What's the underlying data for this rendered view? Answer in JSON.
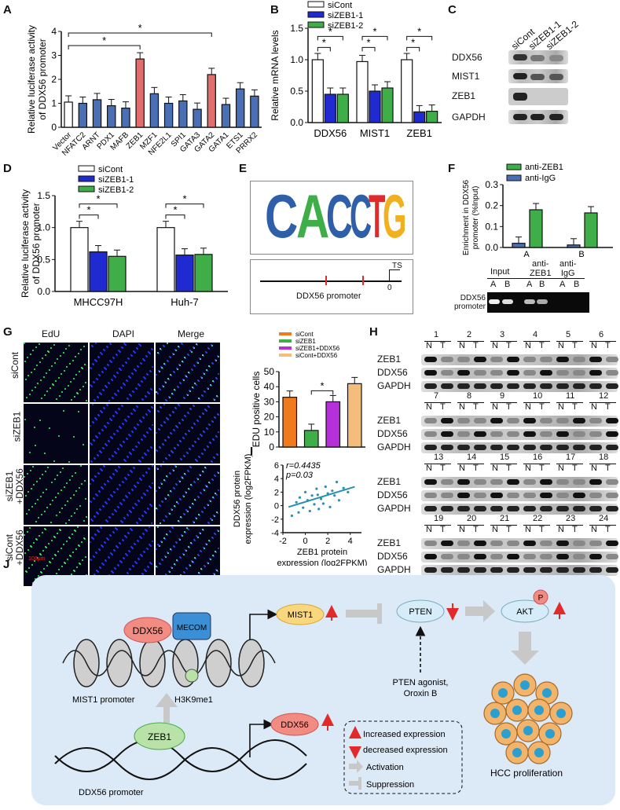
{
  "chart_data": [
    {
      "type": "bar",
      "panel": "A",
      "ylabel_line1": "Relative luciferase activity",
      "ylabel_line2": "of DDX56 promoter",
      "categories": [
        "Vector",
        "NFATC2",
        "ARNT",
        "PDX1",
        "MAFB",
        "ZEB1",
        "MZF1",
        "NFE2L1",
        "SPI1",
        "GATA3",
        "GATA2",
        "GATA1",
        "ETS1",
        "PRRX2"
      ],
      "values": [
        1.05,
        1.0,
        1.15,
        0.9,
        0.8,
        2.85,
        1.4,
        1.0,
        1.1,
        0.75,
        2.2,
        0.95,
        1.6,
        1.3
      ],
      "colors": [
        "#ffffff",
        "#4a6fb5",
        "#4a6fb5",
        "#4a6fb5",
        "#4a6fb5",
        "#e26d6d",
        "#4a6fb5",
        "#4a6fb5",
        "#4a6fb5",
        "#4a6fb5",
        "#e26d6d",
        "#4a6fb5",
        "#4a6fb5",
        "#4a6fb5"
      ],
      "ylim": [
        0,
        4
      ],
      "yticks": [
        "0",
        "1",
        "2",
        "3",
        "4"
      ],
      "sig": "*"
    },
    {
      "type": "bar",
      "panel": "B",
      "ylabel": "Relative mRNA levels",
      "categories": [
        "DDX56",
        "MIST1",
        "ZEB1"
      ],
      "series": [
        {
          "name": "siCont",
          "values": [
            1.0,
            0.97,
            1.0
          ],
          "color": "#ffffff"
        },
        {
          "name": "siZEB1-1",
          "values": [
            0.45,
            0.5,
            0.17
          ],
          "color": "#1f2bd0"
        },
        {
          "name": "siZEB1-2",
          "values": [
            0.45,
            0.55,
            0.18
          ],
          "color": "#3fae49"
        }
      ],
      "ylim": [
        0,
        1.5
      ],
      "yticks": [
        "0.0",
        "0.5",
        "1.0",
        "1.5"
      ],
      "sig": "*"
    },
    {
      "type": "bar",
      "panel": "D",
      "ylabel_line1": "Relative luciferase activity",
      "ylabel_line2": "of DDX56 promoter",
      "categories": [
        "MHCC97H",
        "Huh-7"
      ],
      "series": [
        {
          "name": "siCont",
          "values": [
            1.0,
            1.0
          ],
          "color": "#ffffff"
        },
        {
          "name": "siZEB1-1",
          "values": [
            0.62,
            0.57
          ],
          "color": "#1f2bd0"
        },
        {
          "name": "siZEB1-2",
          "values": [
            0.55,
            0.58
          ],
          "color": "#3fae49"
        }
      ],
      "ylim": [
        0,
        1.5
      ],
      "yticks": [
        "0.0",
        "0.5",
        "1.0",
        "1.5"
      ],
      "sig": "*"
    },
    {
      "type": "bar",
      "panel": "F",
      "ylabel_line1": "Enrichment in DDX56",
      "ylabel_line2": "promoter  (%Input)",
      "categories": [
        "A",
        "B"
      ],
      "series": [
        {
          "name": "anti-ZEB1",
          "values": [
            0.18,
            0.165
          ],
          "color": "#3fae49"
        },
        {
          "name": "anti-IgG",
          "values": [
            0.02,
            0.012
          ],
          "color": "#4a6fb5"
        }
      ],
      "ylim": [
        0,
        0.3
      ],
      "yticks": [
        "0.0",
        "0.1",
        "0.2",
        "0.3"
      ]
    },
    {
      "type": "bar",
      "panel": "G",
      "ylabel": "EDU positive cells",
      "categories": [
        "siCont",
        "siZEB1",
        "siZEB1+DDX56",
        "siCont+DDX56"
      ],
      "values": [
        33,
        11,
        30,
        42
      ],
      "colors": [
        "#f07a1e",
        "#3fae49",
        "#b630d9",
        "#f4bd7c"
      ],
      "ylim": [
        0,
        50
      ],
      "yticks": [
        "0",
        "10",
        "20",
        "30",
        "40",
        "50"
      ],
      "sig": "*"
    },
    {
      "type": "scatter",
      "panel": "I",
      "ylabel_line1": "DDX56 protein",
      "ylabel_line2": "expression (log",
      "ylabel_sub": "2",
      "ylabel_end": "FPKM)",
      "xlabel_line1": "ZEB1 protein",
      "xlabel_line2": "expression (log",
      "xlabel_sub": "2",
      "xlabel_end": "FPKM)",
      "stat_r": "r=0.4435",
      "stat_p": "p=0.03",
      "x": [
        -1.2,
        -0.8,
        -0.5,
        -0.2,
        0.0,
        0.2,
        0.4,
        0.6,
        0.8,
        1.0,
        1.2,
        1.4,
        1.6,
        1.8,
        2.0,
        2.2,
        2.4,
        2.6,
        2.8,
        3.0,
        3.4,
        3.8,
        -0.6,
        1.1
      ],
      "y": [
        -1.5,
        0.5,
        1.2,
        -0.3,
        2.0,
        0.8,
        -0.8,
        1.5,
        0.2,
        2.5,
        -0.5,
        1.0,
        0.3,
        2.8,
        1.8,
        -0.2,
        2.2,
        1.5,
        3.5,
        0.8,
        2.6,
        2.0,
        -1.0,
        1.6
      ],
      "xlim": [
        -2,
        5
      ],
      "ylim": [
        -4,
        6
      ],
      "xticks": [
        "-2",
        "0",
        "2",
        "4"
      ],
      "yticks": [
        "-4",
        "-2",
        "0",
        "2",
        "4",
        "6"
      ]
    }
  ],
  "panels": {
    "A": "A",
    "B": "B",
    "C": "C",
    "D": "D",
    "E": "E",
    "F": "F",
    "G": "G",
    "H": "H",
    "I": "I",
    "J": "J"
  },
  "blotC": {
    "lanes": [
      "siCont",
      "siZEB1-1",
      "siZEB1-2"
    ],
    "rows": [
      "DDX56",
      "MIST1",
      "ZEB1",
      "GAPDH"
    ]
  },
  "motifE": {
    "letters": [
      "C",
      "A",
      "C",
      "C",
      "T",
      "G"
    ],
    "promoter_label": "DDX56 promoter",
    "ts": "TS",
    "zero": "0"
  },
  "chipF": {
    "gel_groups": [
      "Input",
      "anti-\nZEB1",
      "anti-\nIgG"
    ],
    "group1": "Input",
    "group2a": "anti-",
    "group2b": "ZEB1",
    "group3a": "anti-",
    "group3b": "IgG",
    "lanes": [
      "A",
      "B",
      "A",
      "B",
      "A",
      "B"
    ],
    "row_label_1": "DDX56",
    "row_label_2": "promoter"
  },
  "microG": {
    "cols": [
      "EdU",
      "DAPI",
      "Merge"
    ],
    "rows": [
      "siCont",
      "siZEB1",
      "siZEB1\n+DDX56",
      "siCont\n+DDX56"
    ],
    "row3a": "siZEB1",
    "row3b": "+DDX56",
    "row4a": "siCont",
    "row4b": "+DDX56",
    "scale": "100μm"
  },
  "blotH": {
    "rows": [
      "ZEB1",
      "DDX56",
      "GAPDH"
    ],
    "n": "N",
    "t": "T",
    "patients_block1": [
      "1",
      "2",
      "3",
      "4",
      "5",
      "6"
    ],
    "patients_block2": [
      "7",
      "8",
      "9",
      "10",
      "11",
      "12"
    ],
    "patients_block3": [
      "13",
      "14",
      "15",
      "16",
      "17",
      "18"
    ],
    "patients_block4": [
      "19",
      "20",
      "21",
      "22",
      "23",
      "24"
    ]
  },
  "schemeJ": {
    "ddx56": "DDX56",
    "mecom": "MECOM",
    "mist1_promoter": "MIST1 promoter",
    "h3k9me1": "H3K9me1",
    "zeb1": "ZEB1",
    "ddx56_promoter": "DDX56 promoter",
    "mist1": "MIST1",
    "pten": "PTEN",
    "akt": "AKT",
    "p": "P",
    "agonist1": "PTEN agonist,",
    "agonist2": "Oroxin B",
    "ddx56_out": "DDX56",
    "legend_up": "Increased expression",
    "legend_down": "decreased expression",
    "legend_act": "Activation",
    "legend_sup": "Suppression",
    "hcc": "HCC proliferation"
  },
  "colors": {
    "red": "#e12b2b",
    "green": "#3fae49",
    "blue": "#1f2bd0",
    "steel": "#4a6fb5",
    "teal": "#2a8fb0"
  }
}
